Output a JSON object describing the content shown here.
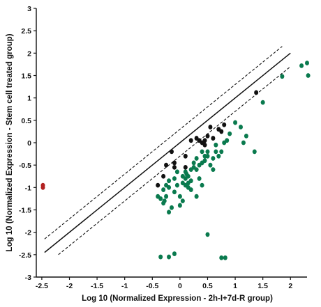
{
  "chart_data": {
    "type": "scatter",
    "xlabel": "Log 10 (Normalized Expression - 2h-I+7d-R group)",
    "ylabel": "Log 10 (Normalized Expression - Stem cell treated group)",
    "xlim": [
      -2.6,
      2.3
    ],
    "ylim": [
      -3.0,
      3.0
    ],
    "xticks": [
      "-2.5",
      "-2",
      "-1.5",
      "-1",
      "-0.5",
      "0",
      "0.5",
      "1",
      "1.5",
      "2"
    ],
    "yticks": [
      "-3",
      "-2.5",
      "-2",
      "-1.5",
      "-1",
      "-0.5",
      "0",
      "0.5",
      "1",
      "1.5",
      "2",
      "2.5",
      "3"
    ],
    "grid": false,
    "colors": {
      "unchanged": "#111111",
      "downregulated": "#0a7a4e",
      "upregulated": "#b22222"
    },
    "reference_lines": [
      {
        "style": "solid",
        "intercept": 0
      },
      {
        "style": "dashed",
        "intercept": 0.3
      },
      {
        "style": "dashed",
        "intercept": -0.3
      }
    ],
    "series": [
      {
        "color_key": "unchanged",
        "points": [
          [
            -0.4,
            -0.95
          ],
          [
            -0.3,
            -0.75
          ],
          [
            -0.25,
            -0.5
          ],
          [
            -0.15,
            -0.2
          ],
          [
            -0.1,
            -0.45
          ],
          [
            -0.1,
            -0.55
          ],
          [
            0.1,
            -0.55
          ],
          [
            0.1,
            -0.3
          ],
          [
            0.2,
            0.05
          ],
          [
            0.3,
            0.1
          ],
          [
            0.35,
            0.05
          ],
          [
            0.4,
            0.0
          ],
          [
            0.45,
            0.05
          ],
          [
            0.45,
            -0.05
          ],
          [
            0.5,
            0.15
          ],
          [
            0.55,
            0.35
          ],
          [
            0.6,
            0.1
          ],
          [
            0.7,
            0.3
          ],
          [
            0.75,
            0.25
          ],
          [
            0.8,
            0.4
          ],
          [
            1.38,
            1.12
          ]
        ]
      },
      {
        "color_key": "downregulated",
        "points": [
          [
            -0.4,
            -1.2
          ],
          [
            -0.35,
            -1.25
          ],
          [
            -0.3,
            -1.05
          ],
          [
            -0.3,
            -1.35
          ],
          [
            -0.28,
            -1.3
          ],
          [
            -0.25,
            -0.95
          ],
          [
            -0.25,
            -1.2
          ],
          [
            -0.2,
            -0.85
          ],
          [
            -0.2,
            -1.0
          ],
          [
            -0.2,
            -1.55
          ],
          [
            -0.15,
            -1.45
          ],
          [
            -0.1,
            -1.1
          ],
          [
            -0.1,
            -0.8
          ],
          [
            -0.05,
            -0.65
          ],
          [
            -0.05,
            -0.95
          ],
          [
            0.0,
            -1.2
          ],
          [
            0.0,
            -1.4
          ],
          [
            0.05,
            -0.75
          ],
          [
            0.05,
            -0.9
          ],
          [
            0.05,
            -1.3
          ],
          [
            0.1,
            -0.65
          ],
          [
            0.1,
            -0.8
          ],
          [
            0.1,
            -0.95
          ],
          [
            0.12,
            -0.7
          ],
          [
            0.15,
            -0.75
          ],
          [
            0.15,
            -0.9
          ],
          [
            0.15,
            -1.0
          ],
          [
            0.2,
            -0.6
          ],
          [
            0.2,
            -0.85
          ],
          [
            0.2,
            -1.05
          ],
          [
            0.25,
            -0.45
          ],
          [
            0.25,
            -0.55
          ],
          [
            0.3,
            -0.35
          ],
          [
            0.3,
            -0.6
          ],
          [
            0.3,
            -1.2
          ],
          [
            0.35,
            -0.5
          ],
          [
            0.35,
            -0.8
          ],
          [
            0.4,
            -0.2
          ],
          [
            0.4,
            -0.45
          ],
          [
            0.4,
            -0.95
          ],
          [
            0.45,
            -0.3
          ],
          [
            0.45,
            -0.4
          ],
          [
            0.5,
            -0.2
          ],
          [
            0.5,
            -0.3
          ],
          [
            0.55,
            -0.5
          ],
          [
            0.6,
            -0.35
          ],
          [
            0.6,
            -0.6
          ],
          [
            0.65,
            -0.05
          ],
          [
            0.65,
            -0.2
          ],
          [
            0.7,
            -0.3
          ],
          [
            0.75,
            -0.2
          ],
          [
            0.8,
            0.0
          ],
          [
            0.85,
            0.05
          ],
          [
            0.9,
            0.2
          ],
          [
            1.0,
            0.45
          ],
          [
            1.1,
            0.35
          ],
          [
            1.15,
            0.0
          ],
          [
            1.2,
            0.15
          ],
          [
            1.35,
            -0.2
          ],
          [
            1.5,
            0.9
          ],
          [
            1.85,
            1.48
          ],
          [
            2.2,
            1.72
          ],
          [
            2.3,
            1.78
          ],
          [
            2.32,
            1.5
          ],
          [
            0.5,
            -2.05
          ],
          [
            -0.35,
            -2.55
          ],
          [
            -0.2,
            -2.55
          ],
          [
            -0.1,
            -2.48
          ],
          [
            0.75,
            -2.57
          ],
          [
            0.82,
            -2.57
          ]
        ]
      },
      {
        "color_key": "upregulated",
        "points": [
          [
            -2.48,
            -0.95
          ],
          [
            -2.48,
            -1.0
          ]
        ]
      }
    ]
  }
}
